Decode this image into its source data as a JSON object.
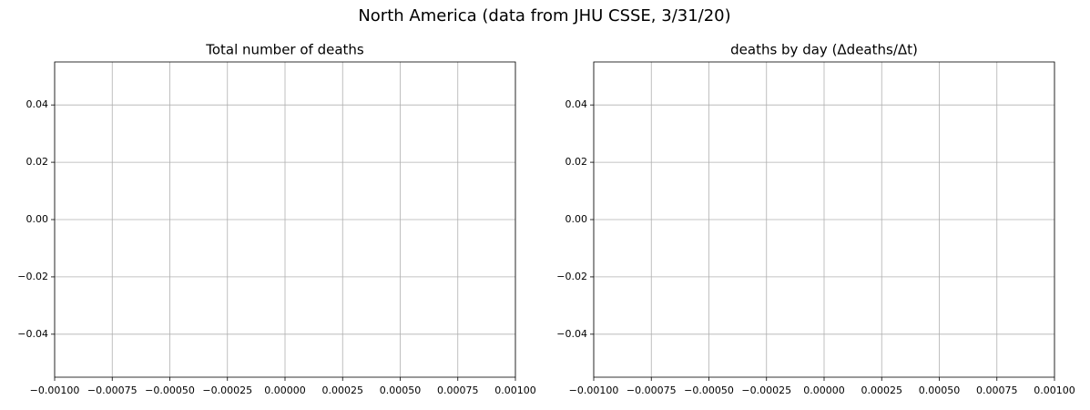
{
  "title": "North America (data from JHU CSSE, 3/31/20)",
  "chart_data": [
    {
      "type": "line",
      "title": "Total number of deaths",
      "xlim": [
        -0.001,
        0.001
      ],
      "xticks": [
        {
          "value": -0.001,
          "label": "−0.00100"
        },
        {
          "value": -0.00075,
          "label": "−0.00075"
        },
        {
          "value": -0.0005,
          "label": "−0.00050"
        },
        {
          "value": -0.00025,
          "label": "−0.00025"
        },
        {
          "value": 0,
          "label": "0.00000"
        },
        {
          "value": 0.00025,
          "label": "0.00025"
        },
        {
          "value": 0.0005,
          "label": "0.00050"
        },
        {
          "value": 0.00075,
          "label": "0.00075"
        },
        {
          "value": 0.001,
          "label": "0.00100"
        }
      ],
      "ylim": [
        -0.055,
        0.055
      ],
      "yticks": [
        {
          "value": -0.04,
          "label": "−0.04"
        },
        {
          "value": -0.02,
          "label": "−0.02"
        },
        {
          "value": 0,
          "label": "0.00"
        },
        0.02,
        0.04
      ],
      "grid": true
    },
    {
      "type": "line",
      "title": "deaths by day (Δdeaths/Δt)",
      "xlim": [
        -0.001,
        0.001
      ],
      "xticks": [
        {
          "value": -0.001,
          "label": "−0.00100"
        },
        {
          "value": -0.00075,
          "label": "−0.00075"
        },
        {
          "value": -0.0005,
          "label": "−0.00050"
        },
        {
          "value": -0.00025,
          "label": "−0.00025"
        },
        {
          "value": 0,
          "label": "0.00000"
        },
        {
          "value": 0.00025,
          "label": "0.00025"
        },
        {
          "value": 0.0005,
          "label": "0.00050"
        },
        {
          "value": 0.00075,
          "label": "0.00075"
        },
        {
          "value": 0.001,
          "label": "0.00100"
        }
      ],
      "ylim": [
        -0.055,
        0.055
      ],
      "yticks": [
        {
          "value": -0.04,
          "label": "−0.04"
        },
        {
          "value": -0.02,
          "label": "−0.02"
        },
        {
          "value": 0,
          "label": "0.00"
        },
        0.02,
        0.04
      ],
      "grid": true
    }
  ]
}
